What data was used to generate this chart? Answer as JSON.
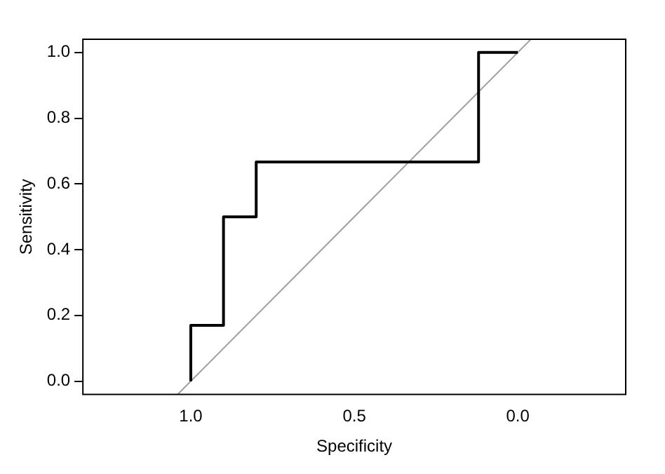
{
  "chart_data": {
    "type": "line",
    "xlabel": "Specificity",
    "ylabel": "Sensitivity",
    "xlim": [
      1.33,
      -0.33
    ],
    "ylim": [
      -0.04,
      1.04
    ],
    "xticks": [
      {
        "value": 1,
        "label": "1.0"
      },
      {
        "value": 0.5,
        "label": "0.5"
      },
      {
        "value": 0,
        "label": "0.0"
      }
    ],
    "yticks": [
      {
        "value": 0,
        "label": "0.0"
      },
      {
        "value": 0.2,
        "label": "0.2"
      },
      {
        "value": 0.4,
        "label": "0.4"
      },
      {
        "value": 0.6,
        "label": "0.6"
      },
      {
        "value": 0.8,
        "label": "0.8"
      },
      {
        "value": 1,
        "label": "1.0"
      }
    ],
    "grid": false,
    "legend": false,
    "marker": "none",
    "series": [
      {
        "color": "#000000",
        "x": [
          1,
          1,
          0.9,
          0.9,
          0.8,
          0.8,
          0.12,
          0.12,
          0
        ],
        "values": [
          0,
          0.17,
          0.17,
          0.5,
          0.5,
          0.667,
          0.667,
          1,
          1
        ]
      },
      {
        "color": "#a0a0a0",
        "x": [
          1.04,
          -0.04
        ],
        "values": [
          -0.04,
          1.04
        ]
      }
    ]
  }
}
